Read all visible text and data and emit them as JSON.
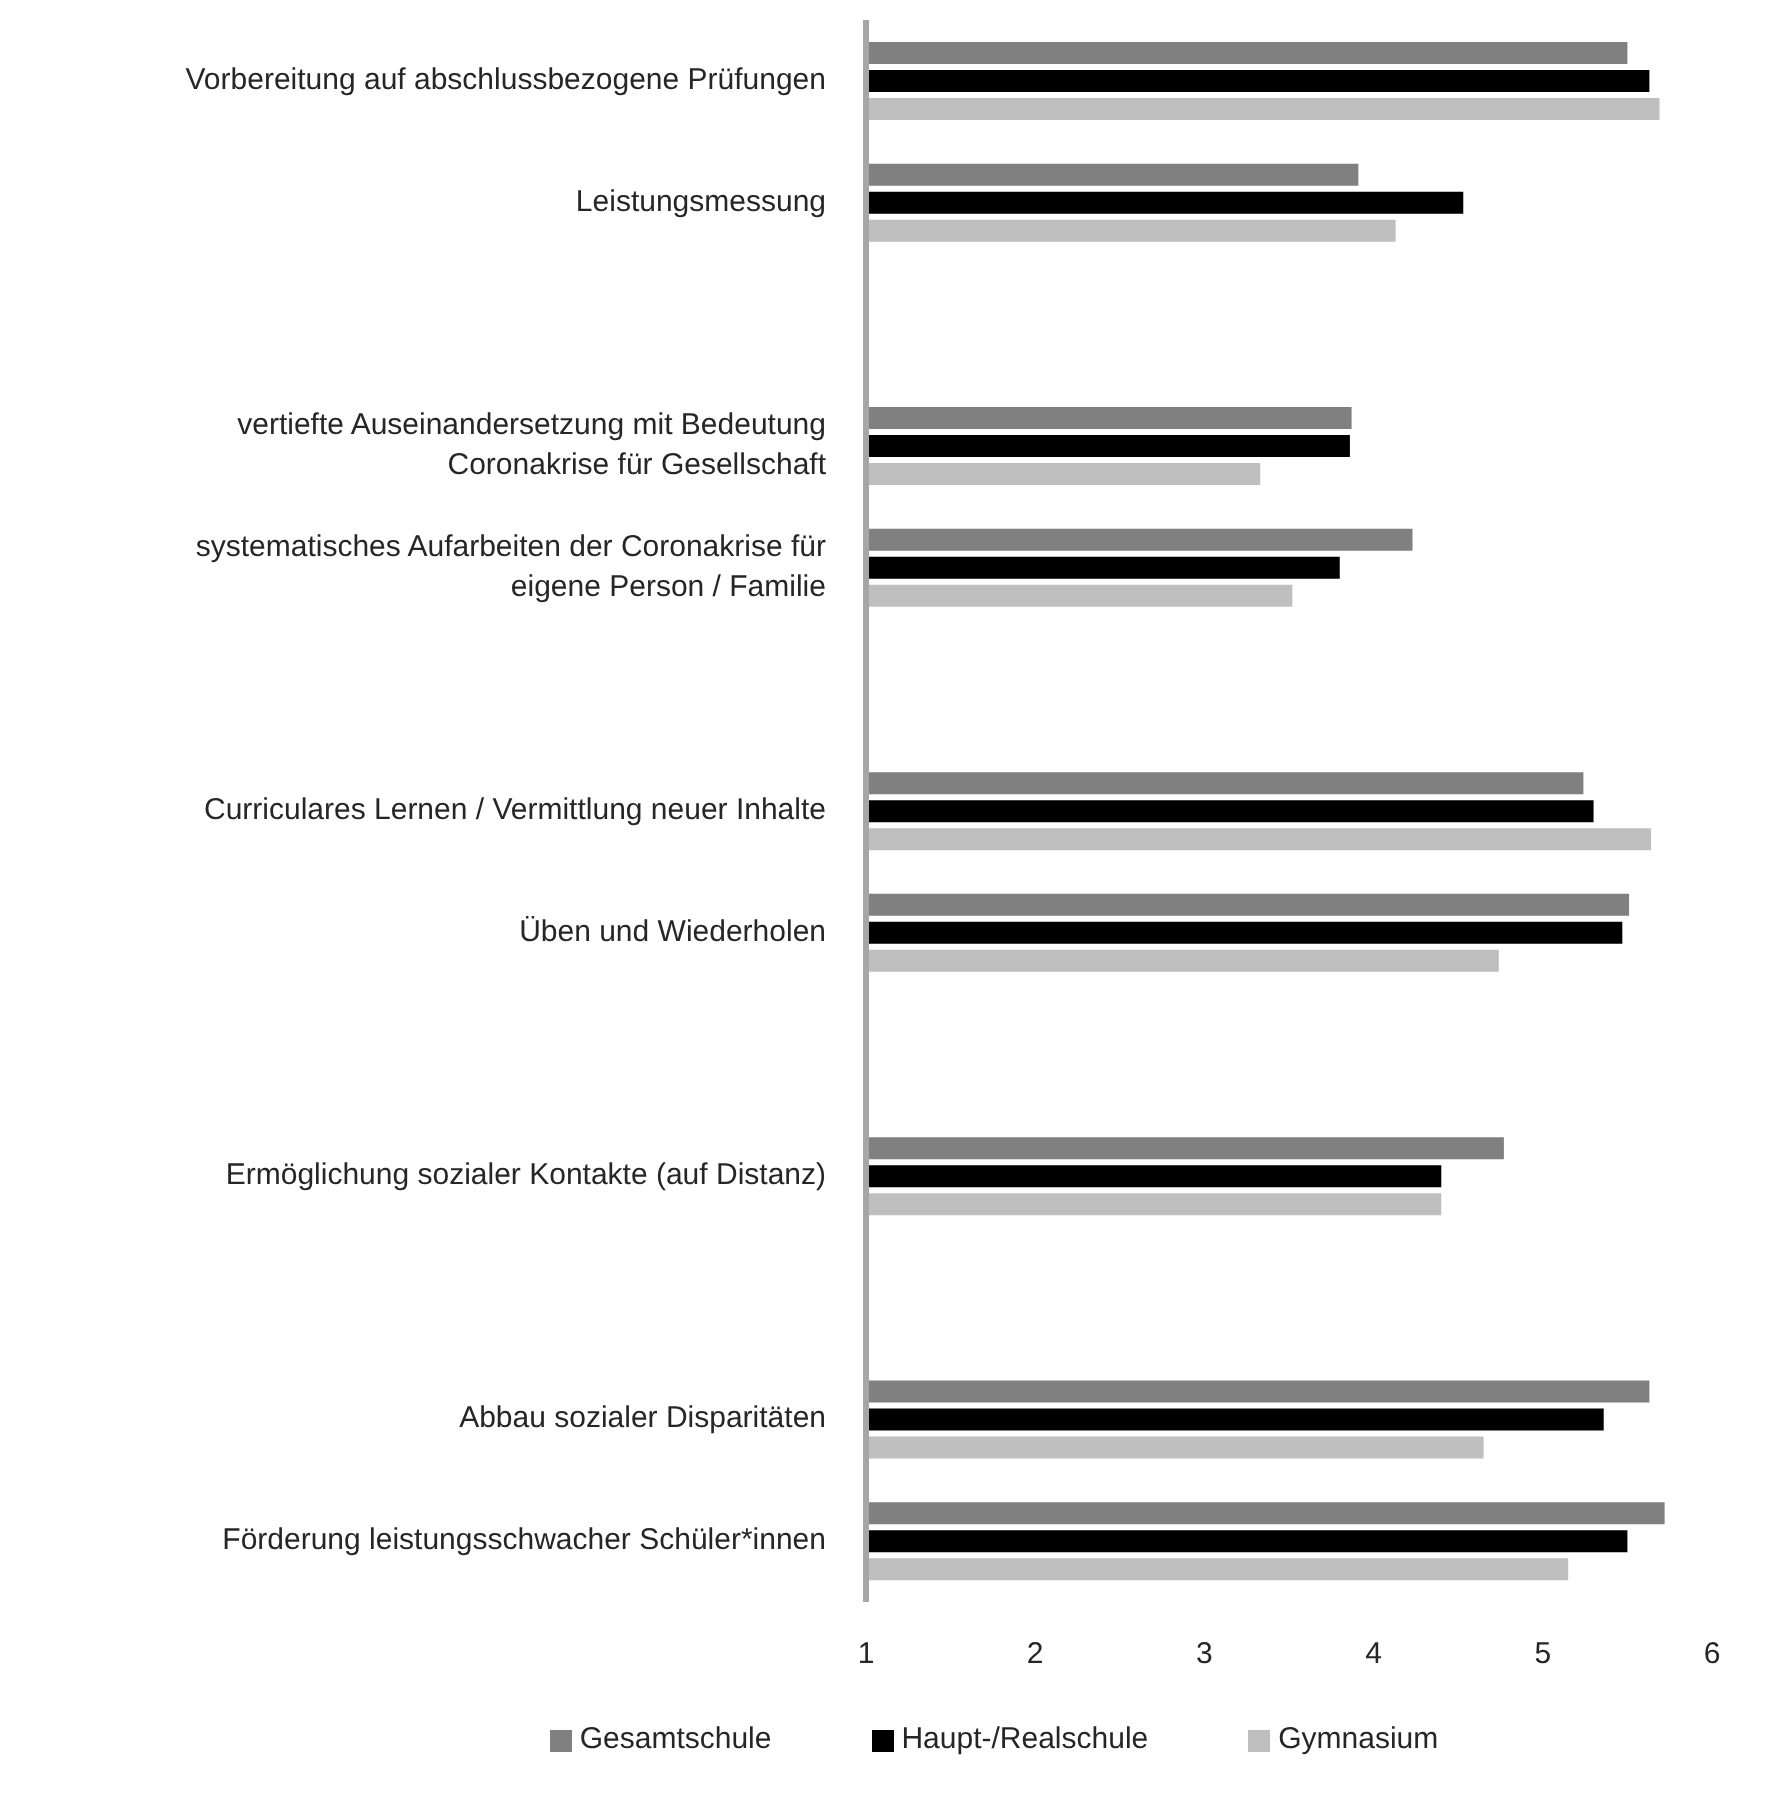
{
  "chart_data": {
    "type": "bar",
    "orientation": "horizontal",
    "categories": [
      "Vorbereitung auf abschlussbezogene Prüfungen",
      "Leistungsmessung",
      null,
      "vertiefte Auseinandersetzung mit Bedeutung Coronakrise für Gesellschaft",
      "systematisches Aufarbeiten der Coronakrise für eigene Person / Familie",
      null,
      "Curriculares Lernen / Vermittlung neuer Inhalte",
      "Üben und Wiederholen",
      null,
      "Ermöglichung sozialer Kontakte (auf Distanz)",
      null,
      "Abbau sozialer Disparitäten",
      "Förderung leistungsschwacher Schüler*innen"
    ],
    "series": [
      {
        "name": "Gesamtschule",
        "color": "#808080",
        "values": [
          5.5,
          3.91,
          null,
          3.87,
          4.23,
          null,
          5.24,
          5.51,
          null,
          4.77,
          null,
          5.63,
          5.72
        ]
      },
      {
        "name": "Haupt-/Realschule",
        "color": "#000000",
        "values": [
          5.63,
          4.53,
          null,
          3.86,
          3.8,
          null,
          5.3,
          5.47,
          null,
          4.4,
          null,
          5.36,
          5.5
        ]
      },
      {
        "name": "Gymnasium",
        "color": "#bfbfbf",
        "values": [
          5.69,
          4.13,
          null,
          3.33,
          3.52,
          null,
          5.64,
          4.74,
          null,
          4.4,
          null,
          4.65,
          5.15
        ]
      }
    ],
    "xlim": [
      1,
      6
    ],
    "xticks": [
      1,
      2,
      3,
      4,
      5,
      6
    ],
    "grid": false,
    "legend": "bottom"
  }
}
